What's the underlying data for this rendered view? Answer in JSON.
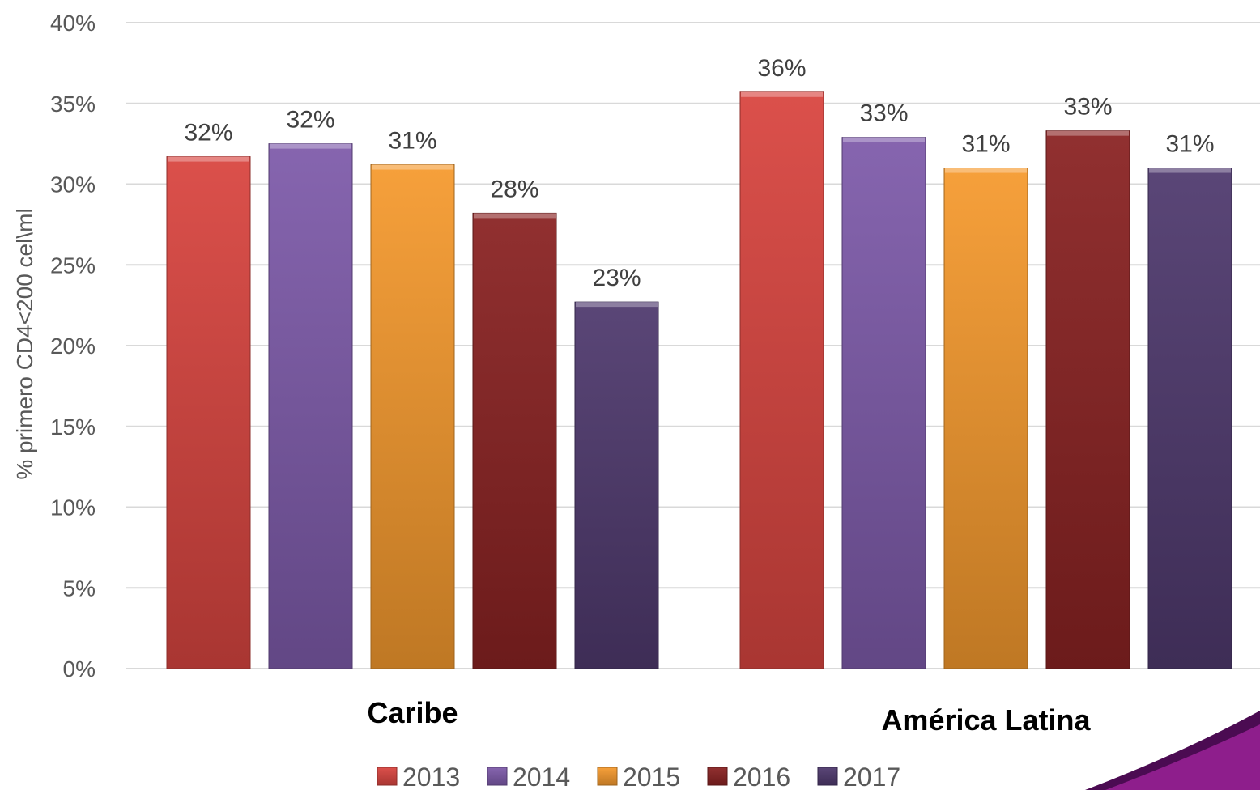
{
  "chart_data": {
    "type": "bar",
    "categories": [
      "Caribe",
      "América Latina"
    ],
    "series": [
      {
        "name": "2013",
        "values": [
          0.317,
          0.357
        ],
        "labels": [
          "32%",
          "36%"
        ],
        "color": "#D94540"
      },
      {
        "name": "2014",
        "values": [
          0.325,
          0.329
        ],
        "labels": [
          "32%",
          "33%"
        ],
        "color": "#7E5BAA"
      },
      {
        "name": "2015",
        "values": [
          0.312,
          0.31
        ],
        "labels": [
          "31%",
          "31%"
        ],
        "color": "#F59A2E"
      },
      {
        "name": "2016",
        "values": [
          0.282,
          0.333
        ],
        "labels": [
          "28%",
          "33%"
        ],
        "color": "#8A2323"
      },
      {
        "name": "2017",
        "values": [
          0.227,
          0.31
        ],
        "labels": [
          "23%",
          "31%"
        ],
        "color": "#4F3A6E"
      }
    ],
    "ylabel": "% primero CD4<200 cel\\ml",
    "ylim": [
      0,
      0.4
    ],
    "yticks": [
      "0%",
      "5%",
      "10%",
      "15%",
      "20%",
      "25%",
      "30%",
      "35%",
      "40%"
    ],
    "grid": true,
    "legend_position": "bottom"
  },
  "decoration_colors": [
    "#8E1E8C",
    "#4B0B52"
  ]
}
